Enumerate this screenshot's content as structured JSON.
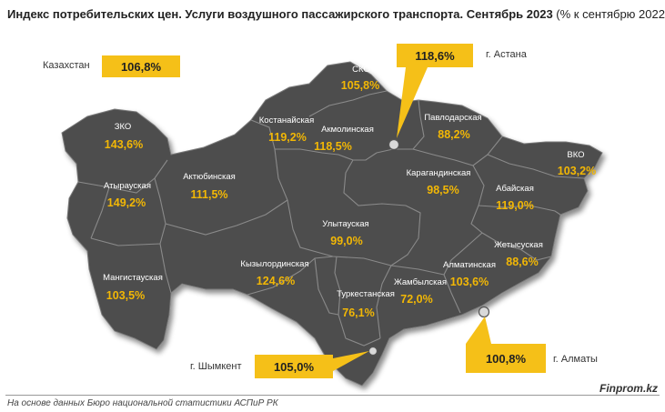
{
  "title": {
    "main": "Индекс потребительских цен. Услуги воздушного пассажирского транспорта. Сентябрь 2023",
    "suffix": " (% к сентябрю 2022)"
  },
  "country": {
    "label": "Казахстан",
    "value": "106,8%"
  },
  "regions": [
    {
      "id": "zko",
      "name": "ЗКО",
      "value": "143,6%"
    },
    {
      "id": "atyrau",
      "name": "Атырауская",
      "value": "149,2%"
    },
    {
      "id": "aktobe",
      "name": "Актюбинская",
      "value": "111,5%"
    },
    {
      "id": "mangistau",
      "name": "Мангистауская",
      "value": "103,5%"
    },
    {
      "id": "kostanay",
      "name": "Костанайская",
      "value": "119,2%"
    },
    {
      "id": "sko",
      "name": "СКО",
      "value": "105,8%"
    },
    {
      "id": "akmola",
      "name": "Акмолинская",
      "value": "118,5%"
    },
    {
      "id": "pavlodar",
      "name": "Павлодарская",
      "value": "88,2%"
    },
    {
      "id": "vko",
      "name": "ВКО",
      "value": "103,2%"
    },
    {
      "id": "karaganda",
      "name": "Карагандинская",
      "value": "98,5%"
    },
    {
      "id": "abai",
      "name": "Абайская",
      "value": "119,0%"
    },
    {
      "id": "ulytau",
      "name": "Улытауская",
      "value": "99,0%"
    },
    {
      "id": "kyzylorda",
      "name": "Кызылординская",
      "value": "124,6%"
    },
    {
      "id": "turkestan",
      "name": "Туркестанская",
      "value": "76,1%"
    },
    {
      "id": "zhambyl",
      "name": "Жамбылская",
      "value": "72,0%"
    },
    {
      "id": "almaty_reg",
      "name": "Алматинская",
      "value": "103,6%"
    },
    {
      "id": "zhetysu",
      "name": "Жетысуская",
      "value": "88,6%"
    }
  ],
  "cities": {
    "astana": {
      "label": "г. Астана",
      "value": "118,6%"
    },
    "shymkent": {
      "label": "г. Шымкент",
      "value": "105,0%"
    },
    "almaty": {
      "label": "г. Алматы",
      "value": "100,8%"
    }
  },
  "colors": {
    "region_fill": "#4d4d4d",
    "border": "#8a8a8a",
    "callout": "#f5c018",
    "value_text": "#f2b705"
  },
  "footer": {
    "source": "На основе данных Бюро национальной статистики АСПиР РК",
    "brand": "Finprom.kz"
  }
}
